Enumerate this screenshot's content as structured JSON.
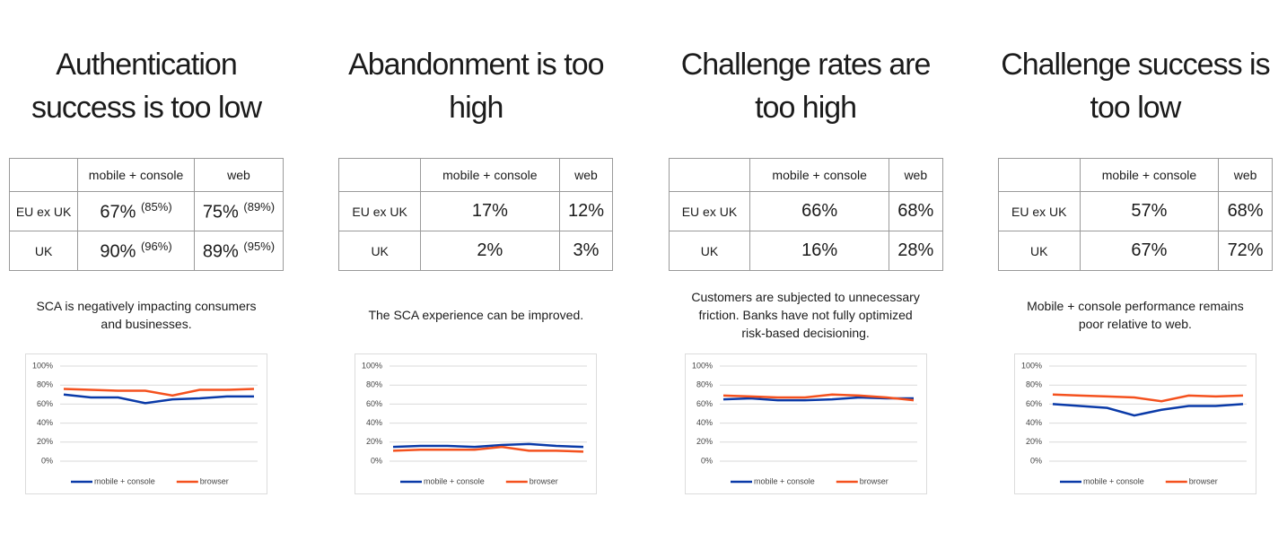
{
  "panels": [
    {
      "title": [
        "Authentication",
        "success is too low"
      ],
      "table": {
        "header": [
          "mobile + console",
          "web"
        ],
        "rows": [
          [
            "EU ex UK",
            [
              "67%",
              "(85%)"
            ],
            [
              "75%",
              "(89%)"
            ]
          ],
          [
            "UK",
            [
              "90%",
              "(96%)"
            ],
            [
              "89%",
              "(95%)"
            ]
          ]
        ]
      },
      "caption": [
        "SCA is negatively impacting consumers",
        "and businesses."
      ]
    },
    {
      "title": [
        "Abandonment is too",
        "high"
      ],
      "table": {
        "header": [
          "mobile + console",
          "web"
        ],
        "rows": [
          [
            "EU ex UK",
            "17%",
            "12%"
          ],
          [
            "UK",
            "2%",
            "3%"
          ]
        ]
      },
      "caption": [
        "The SCA experience can be improved."
      ]
    },
    {
      "title": [
        "Challenge rates are",
        "too high"
      ],
      "table": {
        "header": [
          "mobile + console",
          "web"
        ],
        "rows": [
          [
            "EU ex UK",
            "66%",
            "68%"
          ],
          [
            "UK",
            "16%",
            "28%"
          ]
        ]
      },
      "caption": [
        "Customers are subjected to unnecessary",
        "friction. Banks have not fully optimized",
        "risk-based decisioning."
      ]
    },
    {
      "title": [
        "Challenge success is",
        "too low"
      ],
      "table": {
        "header": [
          "mobile + console",
          "web"
        ],
        "rows": [
          [
            "EU ex UK",
            "57%",
            "68%"
          ],
          [
            "UK",
            "67%",
            "72%"
          ]
        ]
      },
      "caption": [
        "Mobile + console performance remains",
        "poor relative to web."
      ]
    }
  ],
  "chart_data": [
    {
      "type": "line",
      "categories": [
        null,
        null,
        null,
        null,
        null,
        null,
        null,
        null
      ],
      "ylim": [
        0,
        100
      ],
      "yticks": [
        {
          "value": 0,
          "label": "0%"
        },
        {
          "value": 20,
          "label": "20%"
        },
        {
          "value": 40,
          "label": "40%"
        },
        {
          "value": 60,
          "label": "60%"
        },
        {
          "value": 80,
          "label": "80%"
        },
        {
          "value": 100,
          "label": "100%"
        }
      ],
      "grid": true,
      "series": [
        {
          "name": "mobile + console",
          "color": "#0a3aa8",
          "values": [
            70,
            67,
            67,
            61,
            65,
            66,
            68,
            68
          ]
        },
        {
          "name": "browser",
          "color": "#f4511e",
          "values": [
            76,
            75,
            74,
            74,
            69,
            75,
            75,
            76
          ]
        }
      ]
    },
    {
      "type": "line",
      "categories": [
        null,
        null,
        null,
        null,
        null,
        null,
        null,
        null
      ],
      "ylim": [
        0,
        100
      ],
      "yticks": [
        {
          "value": 0,
          "label": "0%"
        },
        {
          "value": 20,
          "label": "20%"
        },
        {
          "value": 40,
          "label": "40%"
        },
        {
          "value": 60,
          "label": "60%"
        },
        {
          "value": 80,
          "label": "80%"
        },
        {
          "value": 100,
          "label": "100%"
        }
      ],
      "grid": true,
      "series": [
        {
          "name": "mobile + console",
          "color": "#0a3aa8",
          "values": [
            15,
            16,
            16,
            15,
            17,
            18,
            16,
            15
          ]
        },
        {
          "name": "browser",
          "color": "#f4511e",
          "values": [
            11,
            12,
            12,
            12,
            15,
            11,
            11,
            10
          ]
        }
      ]
    },
    {
      "type": "line",
      "categories": [
        null,
        null,
        null,
        null,
        null,
        null,
        null,
        null
      ],
      "ylim": [
        0,
        100
      ],
      "yticks": [
        {
          "value": 0,
          "label": "0%"
        },
        {
          "value": 20,
          "label": "20%"
        },
        {
          "value": 40,
          "label": "40%"
        },
        {
          "value": 60,
          "label": "60%"
        },
        {
          "value": 80,
          "label": "80%"
        },
        {
          "value": 100,
          "label": "100%"
        }
      ],
      "grid": true,
      "series": [
        {
          "name": "mobile + console",
          "color": "#0a3aa8",
          "values": [
            65,
            66,
            64,
            64,
            65,
            67,
            66,
            66
          ]
        },
        {
          "name": "browser",
          "color": "#f4511e",
          "values": [
            69,
            68,
            67,
            67,
            70,
            69,
            67,
            64
          ]
        }
      ]
    },
    {
      "type": "line",
      "categories": [
        null,
        null,
        null,
        null,
        null,
        null,
        null,
        null
      ],
      "ylim": [
        0,
        100
      ],
      "yticks": [
        {
          "value": 0,
          "label": "0%"
        },
        {
          "value": 20,
          "label": "20%"
        },
        {
          "value": 40,
          "label": "40%"
        },
        {
          "value": 60,
          "label": "60%"
        },
        {
          "value": 80,
          "label": "80%"
        },
        {
          "value": 100,
          "label": "100%"
        }
      ],
      "grid": true,
      "series": [
        {
          "name": "mobile + console",
          "color": "#0a3aa8",
          "values": [
            60,
            58,
            56,
            48,
            54,
            58,
            58,
            60
          ]
        },
        {
          "name": "browser",
          "color": "#f4511e",
          "values": [
            70,
            69,
            68,
            67,
            63,
            69,
            68,
            69
          ]
        }
      ]
    }
  ]
}
